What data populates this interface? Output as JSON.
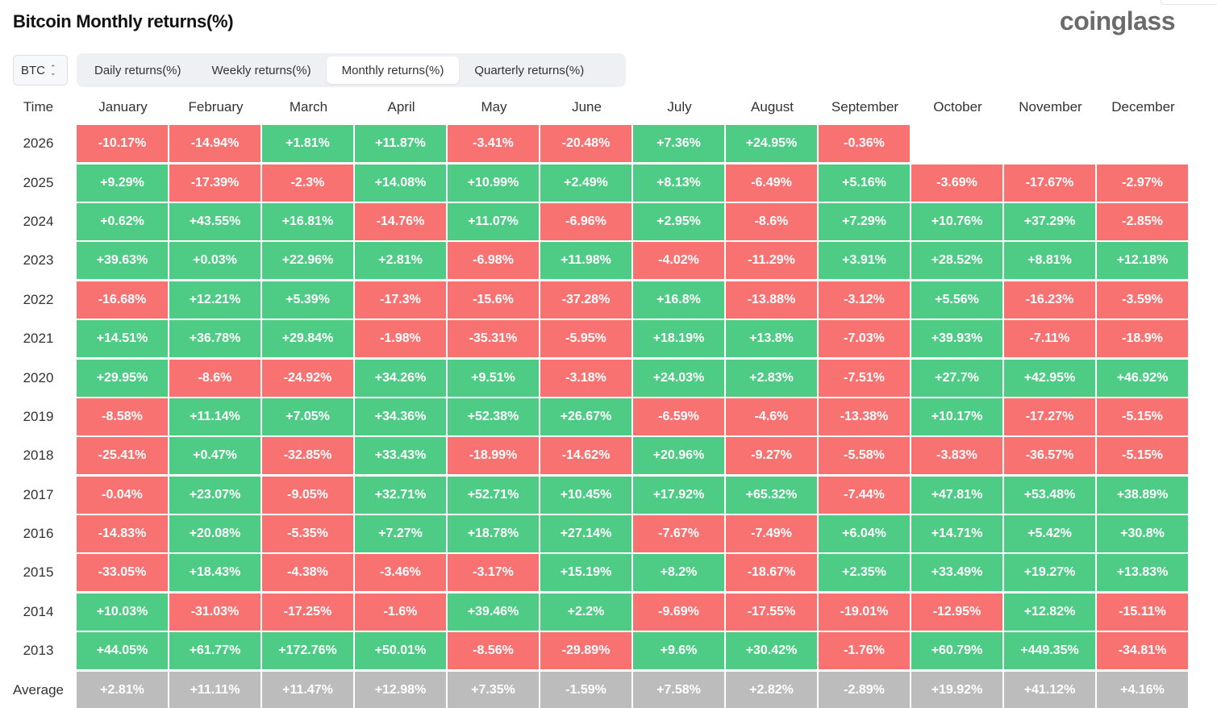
{
  "header": {
    "title": "Bitcoin Monthly returns(%)",
    "logo": "coinglass"
  },
  "controls": {
    "coin": "BTC",
    "tabs": [
      {
        "label": "Daily returns(%)",
        "active": false
      },
      {
        "label": "Weekly returns(%)",
        "active": false
      },
      {
        "label": "Monthly returns(%)",
        "active": true
      },
      {
        "label": "Quarterly returns(%)",
        "active": false
      }
    ]
  },
  "colors": {
    "positive": "#4ecb85",
    "negative": "#f87272",
    "average": "#bcbcbc"
  },
  "table": {
    "time_label": "Time",
    "average_label": "Average",
    "months": [
      "January",
      "February",
      "March",
      "April",
      "May",
      "June",
      "July",
      "August",
      "September",
      "October",
      "November",
      "December"
    ],
    "rows": [
      {
        "year": "2026",
        "values": [
          "-10.17%",
          "-14.94%",
          "+1.81%",
          "+11.87%",
          "-3.41%",
          "-20.48%",
          "+7.36%",
          "+24.95%",
          "-0.36%",
          "",
          "",
          ""
        ]
      },
      {
        "year": "2025",
        "values": [
          "+9.29%",
          "-17.39%",
          "-2.3%",
          "+14.08%",
          "+10.99%",
          "+2.49%",
          "+8.13%",
          "-6.49%",
          "+5.16%",
          "-3.69%",
          "-17.67%",
          "-2.97%"
        ]
      },
      {
        "year": "2024",
        "values": [
          "+0.62%",
          "+43.55%",
          "+16.81%",
          "-14.76%",
          "+11.07%",
          "-6.96%",
          "+2.95%",
          "-8.6%",
          "+7.29%",
          "+10.76%",
          "+37.29%",
          "-2.85%"
        ]
      },
      {
        "year": "2023",
        "values": [
          "+39.63%",
          "+0.03%",
          "+22.96%",
          "+2.81%",
          "-6.98%",
          "+11.98%",
          "-4.02%",
          "-11.29%",
          "+3.91%",
          "+28.52%",
          "+8.81%",
          "+12.18%"
        ]
      },
      {
        "year": "2022",
        "values": [
          "-16.68%",
          "+12.21%",
          "+5.39%",
          "-17.3%",
          "-15.6%",
          "-37.28%",
          "+16.8%",
          "-13.88%",
          "-3.12%",
          "+5.56%",
          "-16.23%",
          "-3.59%"
        ]
      },
      {
        "year": "2021",
        "values": [
          "+14.51%",
          "+36.78%",
          "+29.84%",
          "-1.98%",
          "-35.31%",
          "-5.95%",
          "+18.19%",
          "+13.8%",
          "-7.03%",
          "+39.93%",
          "-7.11%",
          "-18.9%"
        ]
      },
      {
        "year": "2020",
        "values": [
          "+29.95%",
          "-8.6%",
          "-24.92%",
          "+34.26%",
          "+9.51%",
          "-3.18%",
          "+24.03%",
          "+2.83%",
          "-7.51%",
          "+27.7%",
          "+42.95%",
          "+46.92%"
        ]
      },
      {
        "year": "2019",
        "values": [
          "-8.58%",
          "+11.14%",
          "+7.05%",
          "+34.36%",
          "+52.38%",
          "+26.67%",
          "-6.59%",
          "-4.6%",
          "-13.38%",
          "+10.17%",
          "-17.27%",
          "-5.15%"
        ]
      },
      {
        "year": "2018",
        "values": [
          "-25.41%",
          "+0.47%",
          "-32.85%",
          "+33.43%",
          "-18.99%",
          "-14.62%",
          "+20.96%",
          "-9.27%",
          "-5.58%",
          "-3.83%",
          "-36.57%",
          "-5.15%"
        ]
      },
      {
        "year": "2017",
        "values": [
          "-0.04%",
          "+23.07%",
          "-9.05%",
          "+32.71%",
          "+52.71%",
          "+10.45%",
          "+17.92%",
          "+65.32%",
          "-7.44%",
          "+47.81%",
          "+53.48%",
          "+38.89%"
        ]
      },
      {
        "year": "2016",
        "values": [
          "-14.83%",
          "+20.08%",
          "-5.35%",
          "+7.27%",
          "+18.78%",
          "+27.14%",
          "-7.67%",
          "-7.49%",
          "+6.04%",
          "+14.71%",
          "+5.42%",
          "+30.8%"
        ]
      },
      {
        "year": "2015",
        "values": [
          "-33.05%",
          "+18.43%",
          "-4.38%",
          "-3.46%",
          "-3.17%",
          "+15.19%",
          "+8.2%",
          "-18.67%",
          "+2.35%",
          "+33.49%",
          "+19.27%",
          "+13.83%"
        ]
      },
      {
        "year": "2014",
        "values": [
          "+10.03%",
          "-31.03%",
          "-17.25%",
          "-1.6%",
          "+39.46%",
          "+2.2%",
          "-9.69%",
          "-17.55%",
          "-19.01%",
          "-12.95%",
          "+12.82%",
          "-15.11%"
        ]
      },
      {
        "year": "2013",
        "values": [
          "+44.05%",
          "+61.77%",
          "+172.76%",
          "+50.01%",
          "-8.56%",
          "-29.89%",
          "+9.6%",
          "+30.42%",
          "-1.76%",
          "+60.79%",
          "+449.35%",
          "-34.81%"
        ]
      }
    ],
    "average": [
      "+2.81%",
      "+11.11%",
      "+11.47%",
      "+12.98%",
      "+7.35%",
      "-1.59%",
      "+7.58%",
      "+2.82%",
      "-2.89%",
      "+19.92%",
      "+41.12%",
      "+4.16%"
    ]
  }
}
